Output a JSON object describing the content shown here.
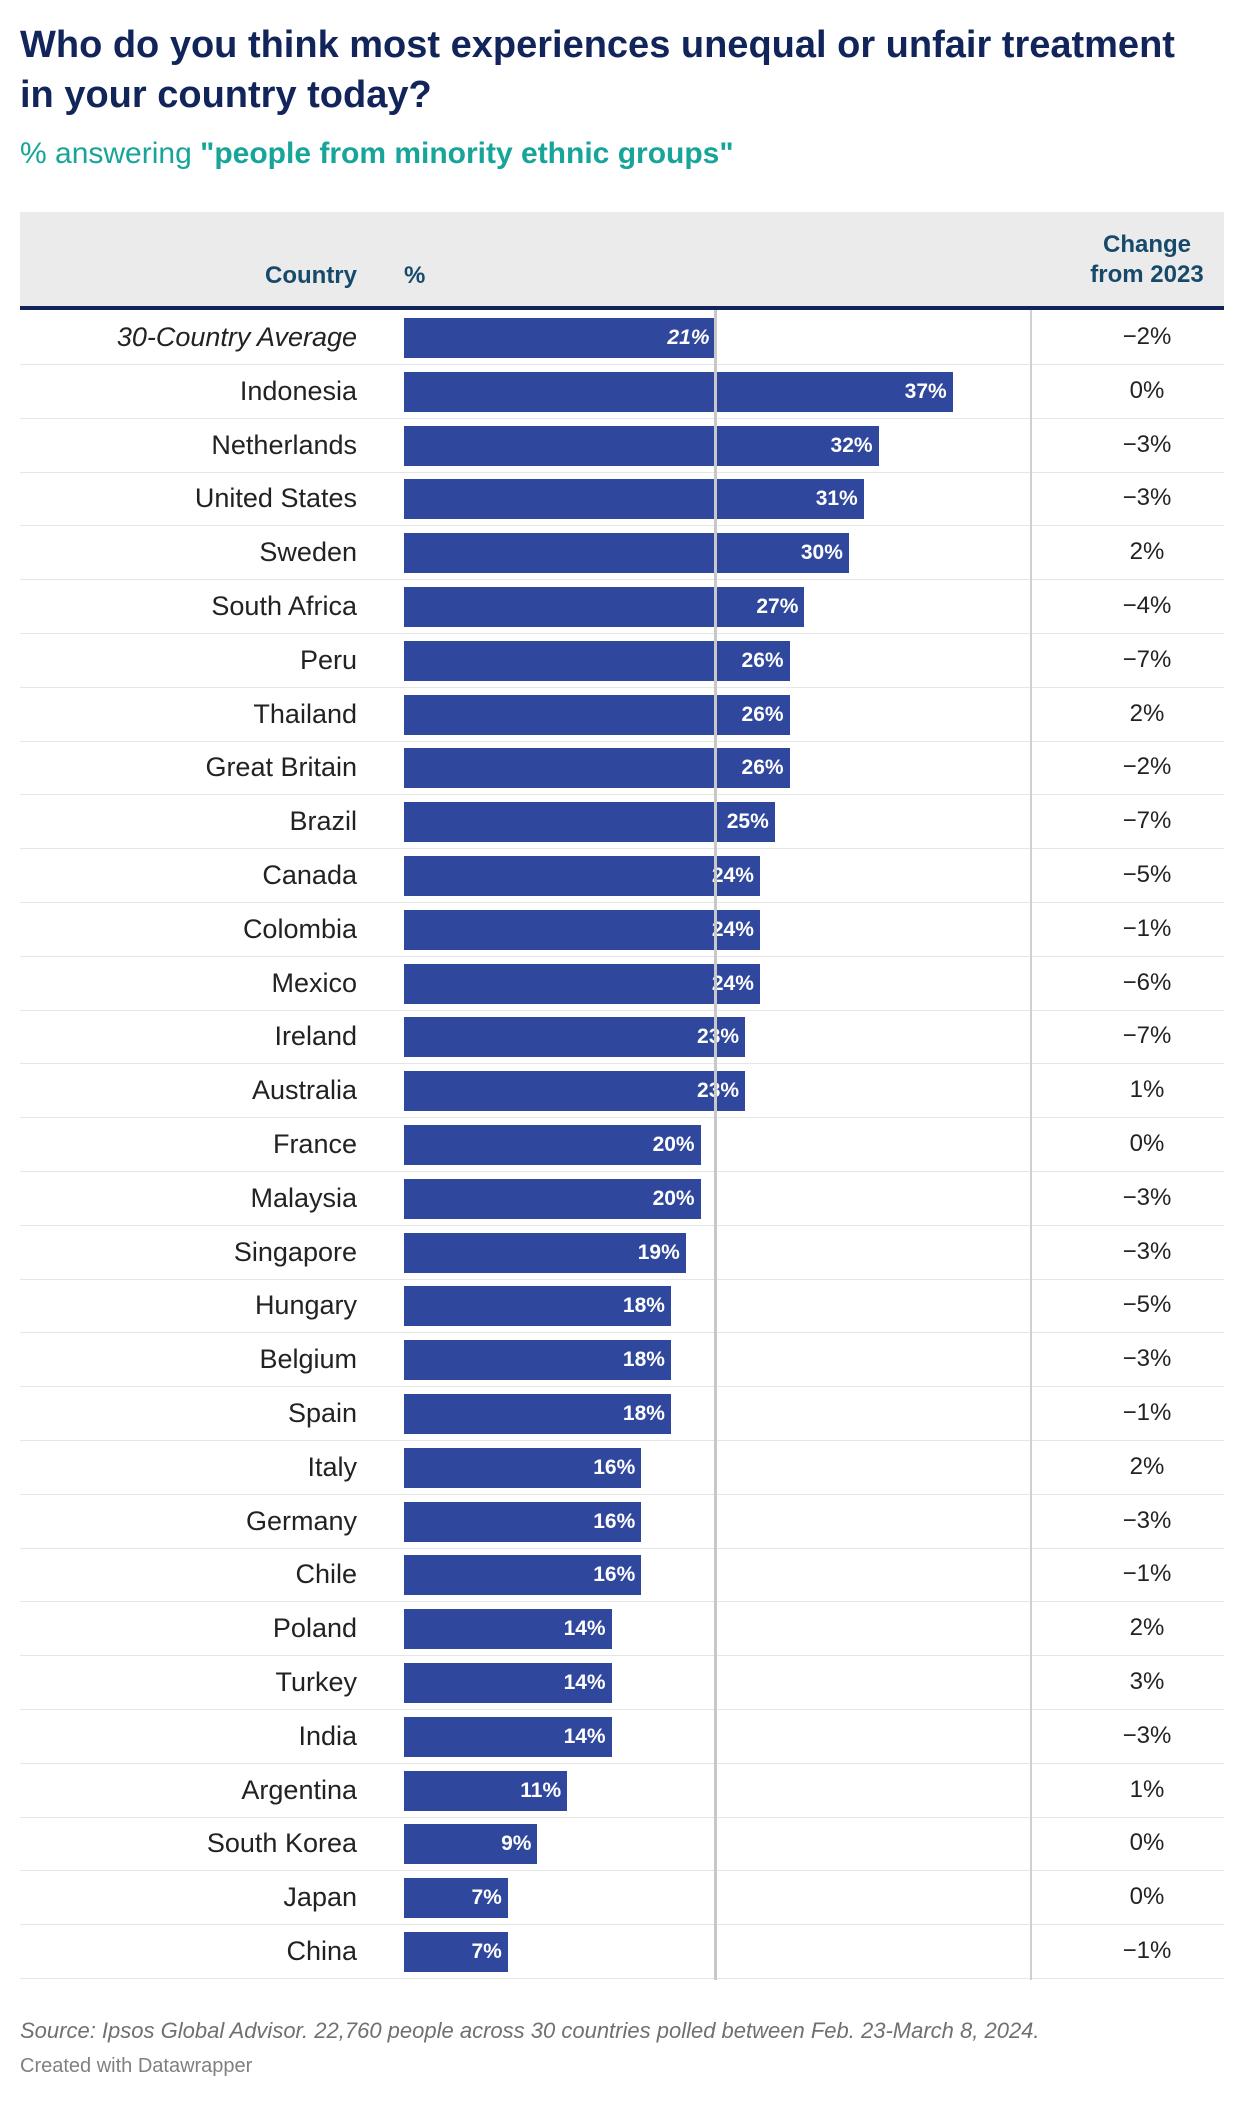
{
  "title": "Who do you think most experiences unequal or unfair treatment in your country today?",
  "subtitle_prefix": "% answering ",
  "subtitle_highlight": "\"people from minority ethnic groups\"",
  "headers": {
    "country": "Country",
    "pct": "%",
    "change_line1": "Change",
    "change_line2": "from 2023"
  },
  "source": "Source: Ipsos Global Advisor. 22,760 people across 30 countries polled between Feb. 23-March 8, 2024.",
  "credit": "Created with Datawrapper",
  "colors": {
    "bar": "#2f479d",
    "title": "#12255a",
    "subtitle": "#17a59a"
  },
  "chart_data": {
    "type": "bar",
    "orientation": "horizontal",
    "xlim": [
      0,
      50
    ],
    "reference_line": 21,
    "categories": [
      "30-Country Average",
      "Indonesia",
      "Netherlands",
      "United States",
      "Sweden",
      "South Africa",
      "Peru",
      "Thailand",
      "Great Britain",
      "Brazil",
      "Canada",
      "Colombia",
      "Mexico",
      "Ireland",
      "Australia",
      "France",
      "Malaysia",
      "Singapore",
      "Hungary",
      "Belgium",
      "Spain",
      "Italy",
      "Germany",
      "Chile",
      "Poland",
      "Turkey",
      "India",
      "Argentina",
      "South Korea",
      "Japan",
      "China"
    ],
    "values": [
      21,
      37,
      32,
      31,
      30,
      27,
      26,
      26,
      26,
      25,
      24,
      24,
      24,
      23,
      23,
      20,
      20,
      19,
      18,
      18,
      18,
      16,
      16,
      16,
      14,
      14,
      14,
      11,
      9,
      7,
      7
    ],
    "value_labels": [
      "21%",
      "37%",
      "32%",
      "31%",
      "30%",
      "27%",
      "26%",
      "26%",
      "26%",
      "25%",
      "24%",
      "24%",
      "24%",
      "23%",
      "23%",
      "20%",
      "20%",
      "19%",
      "18%",
      "18%",
      "18%",
      "16%",
      "16%",
      "16%",
      "14%",
      "14%",
      "14%",
      "11%",
      "9%",
      "7%",
      "7%"
    ],
    "change_from_2023": [
      "−2%",
      "0%",
      "−3%",
      "−3%",
      "2%",
      "−4%",
      "−7%",
      "2%",
      "−2%",
      "−7%",
      "−5%",
      "−1%",
      "−6%",
      "−7%",
      "1%",
      "0%",
      "−3%",
      "−3%",
      "−5%",
      "−3%",
      "−1%",
      "2%",
      "−3%",
      "−1%",
      "2%",
      "3%",
      "−3%",
      "1%",
      "0%",
      "0%",
      "−1%"
    ]
  }
}
